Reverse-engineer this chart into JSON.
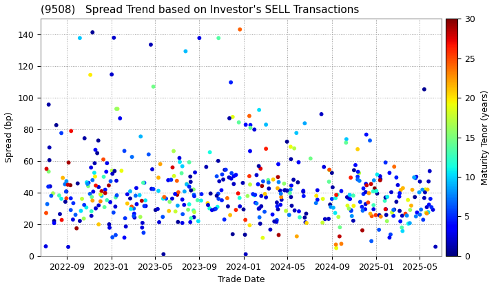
{
  "title": "(9508)   Spread Trend based on Investor's SELL Transactions",
  "xlabel": "Trade Date",
  "ylabel": "Spread (bp)",
  "colorbar_label": "Maturity Tenor (years)",
  "ylim": [
    0,
    150
  ],
  "colormap": "jet",
  "vmin": 0,
  "vmax": 30,
  "marker_size": 18,
  "background_color": "#ffffff",
  "grid_color": "#999999",
  "xtick_labels": [
    "2022-09",
    "2023-01",
    "2023-05",
    "2023-09",
    "2024-01",
    "2024-05",
    "2024-09",
    "2025-01",
    "2025-05"
  ],
  "ytick_labels": [
    0,
    20,
    40,
    60,
    80,
    100,
    120,
    140
  ],
  "title_fontsize": 11,
  "axis_fontsize": 9,
  "colorbar_fontsize": 9
}
